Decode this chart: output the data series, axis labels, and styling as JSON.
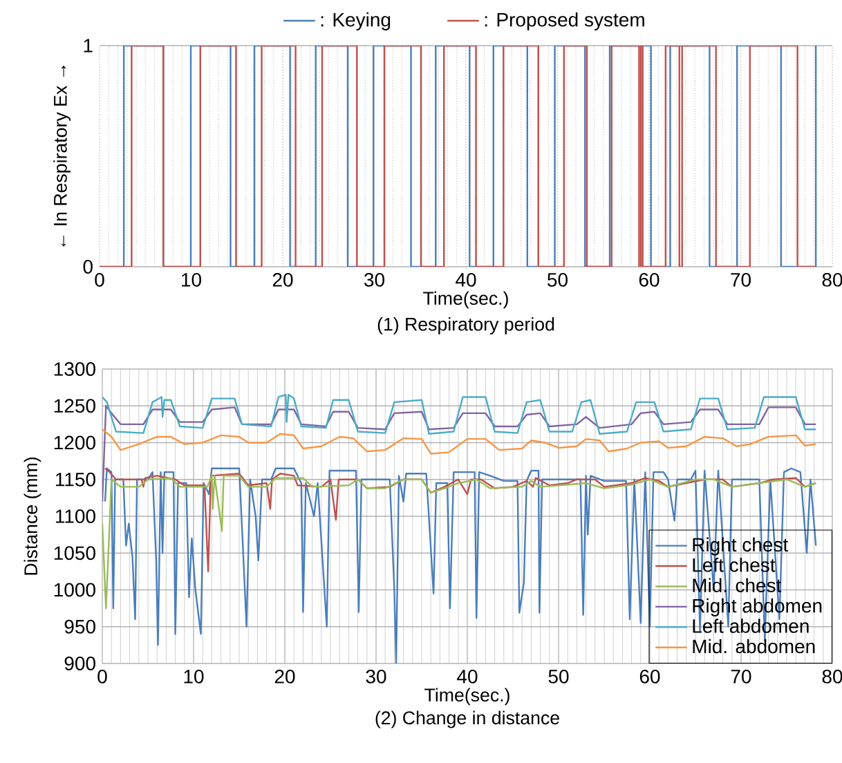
{
  "chart_data": [
    {
      "type": "step",
      "xlabel": "Time(sec.)",
      "ylabel": "← In    Respiratory    Ex →",
      "annotations": [
        "(1) Respiratory period"
      ],
      "xlim": [
        0,
        80
      ],
      "xticks": [
        0,
        10,
        20,
        30,
        40,
        50,
        60,
        70,
        80
      ],
      "ylim": [
        0,
        1
      ],
      "yticks": [
        0,
        1
      ],
      "grid": true,
      "legend": "top",
      "series": [
        {
          "name": ": Keying",
          "color": "#4a7ebb",
          "x": [
            0,
            2.65,
            6.96,
            9.96,
            14.3,
            16.9,
            20.8,
            23.6,
            27.1,
            29.9,
            34.0,
            36.7,
            40.4,
            43.0,
            46.7,
            49.7,
            53.0,
            55.7,
            60.2,
            62.3,
            66.6,
            69.6,
            74.4,
            78.2
          ],
          "values": [
            0,
            1,
            0,
            1,
            0,
            1,
            0,
            1,
            0,
            1,
            0,
            1,
            0,
            1,
            0,
            1,
            0,
            1,
            0,
            1,
            0,
            1,
            0,
            1
          ]
        },
        {
          "name": ": Proposed system",
          "color": "#c0504d",
          "x": [
            0,
            3.5,
            6.96,
            11.0,
            14.9,
            17.7,
            21.4,
            24.3,
            28.1,
            31.1,
            35.1,
            37.6,
            41.1,
            44.1,
            47.9,
            50.7,
            53.2,
            55.9,
            58.9,
            59.1,
            59.3,
            61.8,
            63.3,
            63.6,
            67.3,
            71.0,
            76.2,
            78.2
          ],
          "values": [
            0,
            1,
            0,
            1,
            0,
            1,
            0,
            1,
            0,
            1,
            0,
            1,
            0,
            1,
            0,
            1,
            0,
            1,
            0,
            1,
            0,
            1,
            0,
            1,
            0,
            1,
            0,
            0
          ]
        }
      ]
    },
    {
      "type": "line",
      "xlabel": "Time(sec.)",
      "ylabel": "Distance (mm)",
      "annotations": [
        "(2) Change in distance"
      ],
      "xlim": [
        0,
        80
      ],
      "xticks": [
        0,
        10,
        20,
        30,
        40,
        50,
        60,
        70,
        80
      ],
      "ylim": [
        900,
        1300
      ],
      "yticks": [
        900,
        950,
        1000,
        1050,
        1100,
        1150,
        1200,
        1250,
        1300
      ],
      "grid": true,
      "legend": "bottom right",
      "series": [
        {
          "name": "Right chest",
          "color": "#4a7ebb",
          "x": [
            0.3,
            0.5,
            1.0,
            1.2,
            1.4,
            2.3,
            2.6,
            2.9,
            3.3,
            3.6,
            3.8,
            5.0,
            5.5,
            5.9,
            6.1,
            6.4,
            6.6,
            6.8,
            7.8,
            8.0,
            8.3,
            9.2,
            9.5,
            9.8,
            10.2,
            10.8,
            11.1,
            11.7,
            12.0,
            15.0,
            15.4,
            15.8,
            16.2,
            16.8,
            17.1,
            17.5,
            18.5,
            19.0,
            21.0,
            21.8,
            22.0,
            22.3,
            23.2,
            23.6,
            24.6,
            24.9,
            27.8,
            28.1,
            28.4,
            31.5,
            32.0,
            32.2,
            32.5,
            33.0,
            33.3,
            35.5,
            36.3,
            36.6,
            37.8,
            38.1,
            38.5,
            40.8,
            41.0,
            41.3,
            42.5,
            44.0,
            45.5,
            45.7,
            46.2,
            46.5,
            47.0,
            47.8,
            47.9,
            48.2,
            52.4,
            52.7,
            53.0,
            53.2,
            53.5,
            55.0,
            57.4,
            57.8,
            58.3,
            59.0,
            59.5,
            60.0,
            60.4,
            61.5,
            62.0,
            62.7,
            63.0,
            64.5,
            65.0,
            65.5,
            66.0,
            67.0,
            67.5,
            68.6,
            69.0,
            72.0,
            72.6,
            73.2,
            74.2,
            74.7,
            75.5,
            76.5,
            77.2,
            77.6,
            78.2
          ],
          "values": [
            1120,
            1165,
            1160,
            975,
            1150,
            1150,
            1060,
            1090,
            1045,
            960,
            1150,
            1150,
            1160,
            1040,
            925,
            1160,
            1050,
            1160,
            1160,
            940,
            1145,
            1145,
            990,
            1070,
            1000,
            940,
            1145,
            1130,
            1165,
            1165,
            1060,
            950,
            1150,
            1100,
            1040,
            1150,
            1150,
            1165,
            1165,
            1145,
            970,
            1145,
            1100,
            1145,
            950,
            1162,
            1162,
            970,
            1150,
            1150,
            1000,
            900,
            1155,
            1120,
            1158,
            1158,
            995,
            1145,
            1145,
            975,
            1160,
            1160,
            962,
            1160,
            1155,
            1148,
            1148,
            969,
            1010,
            1148,
            1162,
            1162,
            969,
            1150,
            1150,
            966,
            1155,
            1075,
            1155,
            1148,
            1148,
            960,
            1150,
            955,
            1160,
            950,
            1160,
            1160,
            1150,
            1094,
            1150,
            1150,
            1162,
            944,
            1162,
            1000,
            1162,
            950,
            1150,
            1150,
            931,
            1150,
            960,
            1160,
            1165,
            1160,
            1050,
            1150,
            1060
          ]
        },
        {
          "name": "Left chest",
          "color": "#c0504d",
          "x": [
            0.3,
            0.8,
            1.5,
            4.3,
            4.5,
            4.7,
            6.0,
            8.0,
            9.0,
            11.2,
            11.6,
            11.9,
            15.0,
            16.0,
            18.0,
            18.4,
            18.6,
            19.5,
            21.0,
            21.4,
            24.0,
            25.0,
            25.6,
            25.9,
            28.0,
            29.0,
            31.5,
            33.0,
            35.0,
            36.0,
            37.5,
            39.0,
            40.0,
            40.4,
            41.5,
            43.0,
            45.0,
            46.5,
            47.2,
            47.5,
            49.0,
            51.0,
            52.0,
            54.0,
            55.0,
            58.0,
            59.5,
            61.0,
            62.0,
            64.0,
            66.0,
            68.0,
            69.0,
            72.0,
            73.5,
            76.0,
            77.0,
            78.2
          ],
          "values": [
            1165,
            1160,
            1150,
            1150,
            1140,
            1152,
            1155,
            1150,
            1142,
            1142,
            1025,
            1155,
            1158,
            1142,
            1145,
            1110,
            1150,
            1158,
            1155,
            1142,
            1140,
            1150,
            1095,
            1150,
            1150,
            1138,
            1140,
            1150,
            1150,
            1132,
            1140,
            1150,
            1130,
            1150,
            1150,
            1138,
            1140,
            1148,
            1140,
            1152,
            1142,
            1145,
            1150,
            1150,
            1140,
            1145,
            1152,
            1148,
            1140,
            1145,
            1150,
            1150,
            1140,
            1145,
            1150,
            1152,
            1140,
            1145
          ]
        },
        {
          "name": "Mid. chest",
          "color": "#9bbb59",
          "x": [
            0.0,
            0.4,
            0.7,
            1.0,
            2.0,
            4.0,
            5.0,
            7.5,
            8.5,
            11.5,
            12.0,
            12.1,
            12.3,
            13.1,
            13.3,
            15.0,
            16.0,
            18.0,
            19.0,
            22.0,
            23.0,
            27.0,
            28.0,
            29.0,
            31.0,
            33.0,
            35.0,
            36.0,
            37.5,
            39.0,
            41.0,
            42.5,
            46.0,
            47.0,
            48.0,
            51.0,
            53.0,
            55.0,
            58.0,
            60.0,
            62.0,
            65.0,
            67.0,
            69.0,
            72.0,
            75.0,
            77.0,
            78.2
          ],
          "values": [
            1090,
            975,
            1060,
            1150,
            1140,
            1140,
            1150,
            1152,
            1140,
            1140,
            1155,
            1110,
            1155,
            1080,
            1155,
            1155,
            1140,
            1140,
            1152,
            1152,
            1140,
            1142,
            1150,
            1138,
            1138,
            1150,
            1150,
            1132,
            1138,
            1145,
            1150,
            1138,
            1140,
            1148,
            1140,
            1143,
            1145,
            1138,
            1143,
            1150,
            1140,
            1150,
            1150,
            1140,
            1145,
            1150,
            1140,
            1145
          ]
        },
        {
          "name": "Right abdomen",
          "color": "#8064a2",
          "x": [
            0.0,
            0.4,
            1.0,
            2.0,
            4.5,
            5.5,
            7.5,
            8.5,
            11.0,
            12.0,
            14.5,
            15.3,
            18.5,
            19.3,
            21.0,
            21.8,
            24.5,
            25.3,
            27.0,
            28.0,
            31.0,
            32.0,
            35.0,
            35.8,
            38.5,
            39.5,
            42.0,
            43.0,
            45.5,
            46.5,
            48.0,
            49.0,
            52.0,
            53.0,
            54.5,
            58.0,
            59.0,
            60.5,
            61.5,
            64.5,
            65.5,
            67.5,
            68.5,
            72.0,
            73.0,
            76.0,
            77.0,
            78.2
          ],
          "values": [
            1120,
            1250,
            1240,
            1225,
            1225,
            1245,
            1245,
            1228,
            1228,
            1245,
            1248,
            1225,
            1225,
            1245,
            1245,
            1225,
            1222,
            1242,
            1242,
            1220,
            1218,
            1240,
            1242,
            1218,
            1220,
            1240,
            1240,
            1222,
            1222,
            1238,
            1240,
            1222,
            1225,
            1235,
            1220,
            1225,
            1240,
            1242,
            1225,
            1228,
            1245,
            1245,
            1225,
            1225,
            1248,
            1248,
            1225,
            1225
          ]
        },
        {
          "name": "Left abdomen",
          "color": "#4bacc6",
          "x": [
            0.0,
            0.5,
            1.5,
            4.5,
            5.5,
            6.5,
            6.6,
            6.8,
            7.5,
            8.5,
            11.0,
            12.0,
            14.5,
            15.3,
            18.5,
            19.3,
            20.1,
            20.2,
            20.4,
            21.0,
            21.8,
            24.5,
            25.3,
            27.0,
            28.0,
            31.0,
            32.0,
            35.0,
            35.8,
            38.5,
            39.5,
            42.0,
            43.0,
            45.5,
            46.5,
            48.0,
            49.0,
            51.5,
            52.5,
            53.5,
            54.5,
            57.5,
            58.5,
            60.5,
            61.5,
            64.5,
            65.5,
            67.5,
            68.5,
            71.5,
            72.5,
            76.0,
            77.0,
            78.2
          ],
          "values": [
            1262,
            1255,
            1215,
            1213,
            1255,
            1262,
            1235,
            1258,
            1258,
            1222,
            1220,
            1260,
            1260,
            1225,
            1222,
            1262,
            1265,
            1228,
            1265,
            1260,
            1222,
            1220,
            1258,
            1258,
            1215,
            1213,
            1255,
            1258,
            1212,
            1215,
            1262,
            1262,
            1215,
            1213,
            1255,
            1258,
            1215,
            1215,
            1255,
            1258,
            1212,
            1215,
            1255,
            1255,
            1215,
            1218,
            1260,
            1260,
            1218,
            1220,
            1262,
            1262,
            1218,
            1218
          ]
        },
        {
          "name": "Mid. abdomen",
          "color": "#f79646",
          "x": [
            0.0,
            1.0,
            2.0,
            4.0,
            6.0,
            7.5,
            9.0,
            11.0,
            13.0,
            15.0,
            16.0,
            18.0,
            19.5,
            21.0,
            22.0,
            24.0,
            26.0,
            27.5,
            29.0,
            31.0,
            33.0,
            35.0,
            36.0,
            38.0,
            40.0,
            42.0,
            43.5,
            46.0,
            47.0,
            48.5,
            50.0,
            52.0,
            53.0,
            54.5,
            55.5,
            57.5,
            59.0,
            61.0,
            62.0,
            64.0,
            66.0,
            68.0,
            69.5,
            71.0,
            73.0,
            76.0,
            77.0,
            78.2
          ],
          "values": [
            1218,
            1208,
            1190,
            1198,
            1208,
            1208,
            1198,
            1200,
            1210,
            1208,
            1200,
            1200,
            1212,
            1210,
            1192,
            1195,
            1208,
            1206,
            1188,
            1190,
            1206,
            1205,
            1185,
            1187,
            1205,
            1205,
            1190,
            1192,
            1203,
            1200,
            1193,
            1195,
            1205,
            1203,
            1188,
            1192,
            1200,
            1202,
            1193,
            1195,
            1208,
            1206,
            1195,
            1198,
            1208,
            1210,
            1196,
            1198
          ]
        }
      ]
    }
  ]
}
